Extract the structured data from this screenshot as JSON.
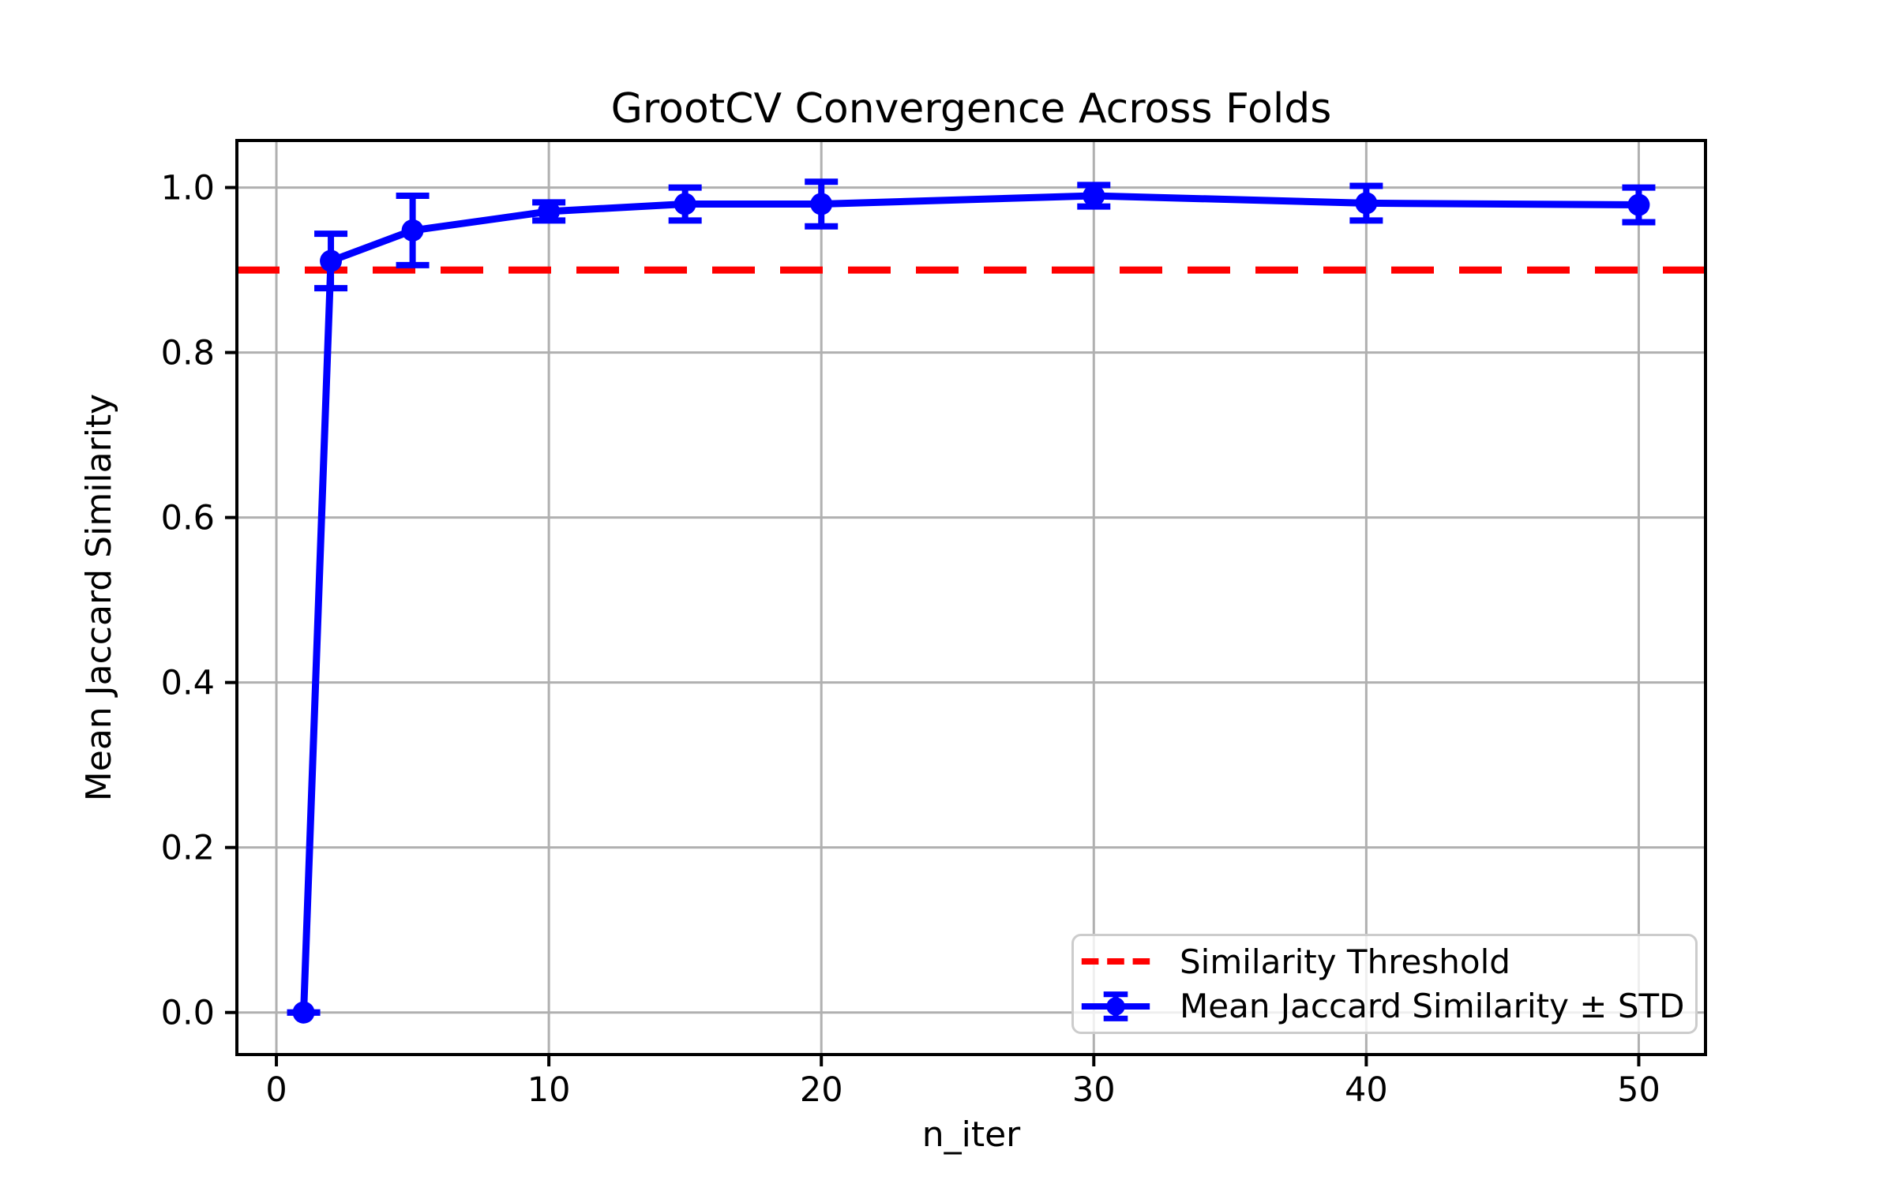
{
  "chart_data": {
    "type": "line",
    "title": "GrootCV Convergence Across Folds",
    "xlabel": "n_iter",
    "ylabel": "Mean Jaccard Similarity",
    "x_ticks": [
      0,
      10,
      20,
      30,
      40,
      50
    ],
    "y_ticks": [
      "0.0",
      "0.2",
      "0.4",
      "0.6",
      "0.8",
      "1.0"
    ],
    "xlim": [
      -1.45,
      52.45
    ],
    "ylim": [
      -0.051,
      1.057
    ],
    "grid": true,
    "legend_loc": "lower right",
    "threshold": {
      "label": "Similarity Threshold",
      "value": 0.9,
      "color": "#ff0000",
      "style": "dashed"
    },
    "series": [
      {
        "name": "Mean Jaccard Similarity ± STD",
        "color": "#0000ff",
        "marker": "circle",
        "x": [
          1,
          2,
          5,
          10,
          15,
          20,
          30,
          40,
          50
        ],
        "mean": [
          0.0,
          0.911,
          0.948,
          0.971,
          0.98,
          0.98,
          0.99,
          0.981,
          0.979
        ],
        "std": [
          0.0,
          0.033,
          0.042,
          0.011,
          0.02,
          0.027,
          0.013,
          0.021,
          0.021
        ]
      }
    ]
  },
  "colors": {
    "grid": "#b0b0b0",
    "axis": "#000000",
    "background": "#ffffff",
    "series": "#0000ff",
    "threshold": "#ff0000"
  }
}
